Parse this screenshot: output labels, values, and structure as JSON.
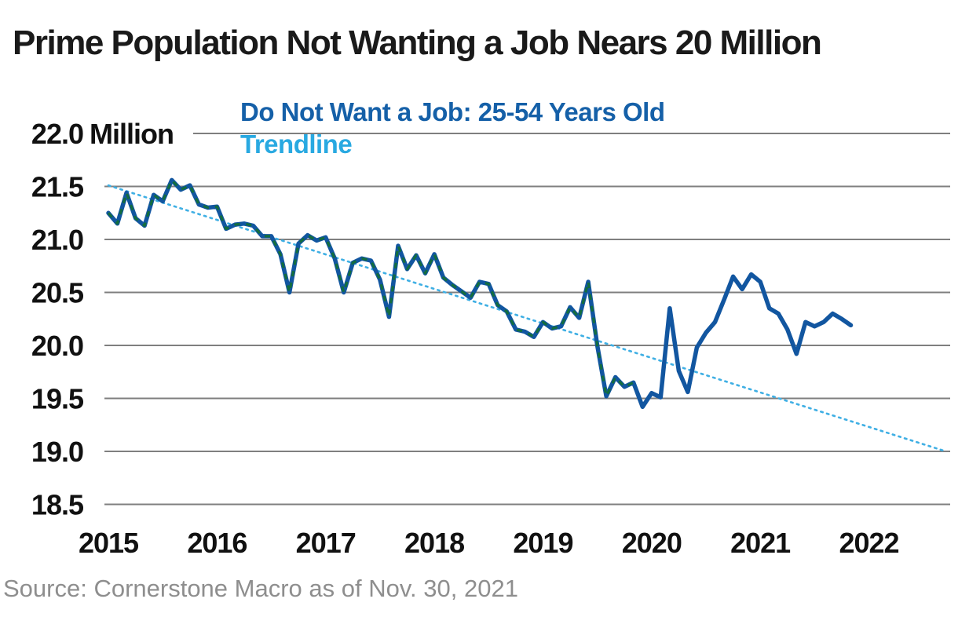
{
  "title": "Prime Population Not Wanting a Job Nears 20 Million",
  "source": "Source: Cornerstone Macro as of Nov. 30, 2021",
  "legend": {
    "series_label": "Do Not Want a Job: 25-54 Years Old",
    "trendline_label": "Trendline"
  },
  "colors": {
    "title_text": "#1a1a1a",
    "axis_text": "#111111",
    "source_text": "#8e8e8e",
    "grid": "#7f7f7f",
    "series_line": "#1256A0",
    "series_dash_overlay": "#136D3F",
    "trendline": "#3FAFE4",
    "legend_series_text": "#1560A8",
    "legend_trendline_text": "#29A9E1"
  },
  "chart_data": {
    "type": "line",
    "title": "Prime Population Not Wanting a Job Nears 20 Million",
    "xlabel": "",
    "ylabel": "Million",
    "unit": "Million persons",
    "frequency": "monthly",
    "x_monthly_start": "2015-01",
    "x_monthly_end": "2021-11",
    "x_tick_labels": [
      "2015",
      "2016",
      "2017",
      "2018",
      "2019",
      "2020",
      "2021",
      "2022"
    ],
    "y_tick_labels": [
      "22.0",
      "21.5",
      "21.0",
      "20.5",
      "20.0",
      "19.5",
      "19.0",
      "18.5"
    ],
    "y_tick_values": [
      22.0,
      21.5,
      21.0,
      20.5,
      20.0,
      19.5,
      19.0,
      18.5
    ],
    "y_axis_unit_suffix": "Million",
    "ylim": [
      18.5,
      22.0
    ],
    "grid": "horizontal",
    "legend_position": "top-left-inside",
    "series": [
      {
        "name": "Do Not Want a Job: 25-54 Years Old",
        "style": "solid-thick-with-dark-green-dash-overlay",
        "dash_overlay_last_month_index": 58,
        "values": [
          21.25,
          21.15,
          21.44,
          21.2,
          21.13,
          21.42,
          21.36,
          21.56,
          21.47,
          21.51,
          21.33,
          21.3,
          21.31,
          21.1,
          21.14,
          21.15,
          21.13,
          21.03,
          21.03,
          20.86,
          20.5,
          20.96,
          21.04,
          20.99,
          21.02,
          20.82,
          20.5,
          20.78,
          20.82,
          20.8,
          20.62,
          20.27,
          20.94,
          20.72,
          20.85,
          20.68,
          20.86,
          20.64,
          20.57,
          20.51,
          20.45,
          20.6,
          20.58,
          20.38,
          20.32,
          20.15,
          20.13,
          20.08,
          20.22,
          20.16,
          20.18,
          20.36,
          20.26,
          20.6,
          20.0,
          19.52,
          19.7,
          19.61,
          19.65,
          19.42,
          19.55,
          19.51,
          20.35,
          19.76,
          19.56,
          19.98,
          20.12,
          20.22,
          20.43,
          20.65,
          20.53,
          20.67,
          20.6,
          20.35,
          20.3,
          20.15,
          19.92,
          20.22,
          20.18,
          20.22,
          20.3,
          20.25,
          20.19
        ]
      },
      {
        "name": "Trendline",
        "style": "dotted",
        "start_month_index": 0,
        "start_value": 21.51,
        "end_month_index": 92.5,
        "end_value": 19.0
      }
    ]
  }
}
